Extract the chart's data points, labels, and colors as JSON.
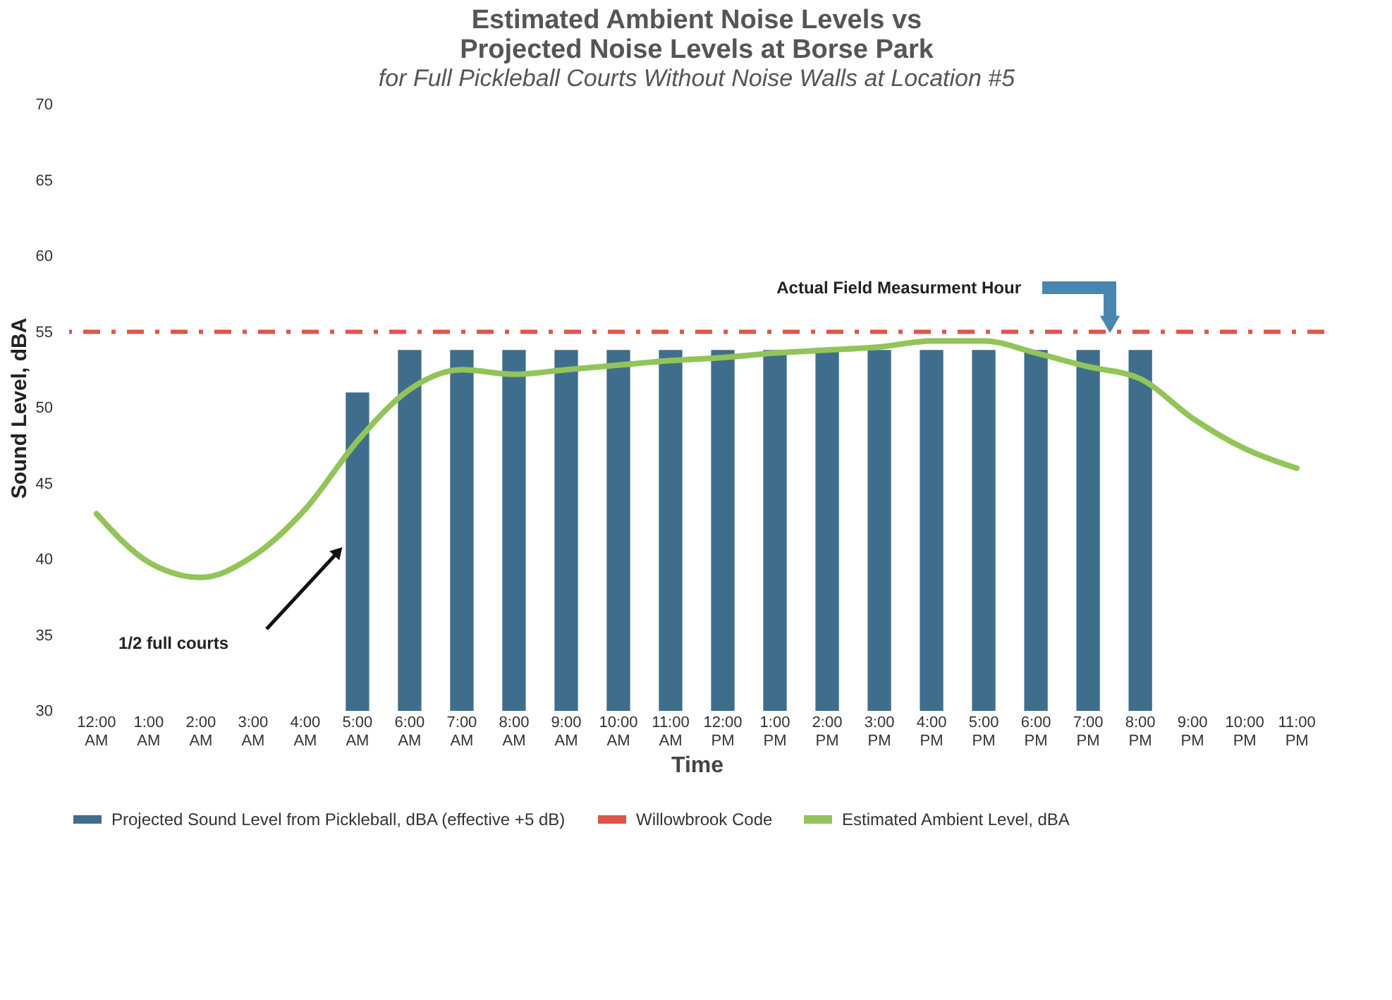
{
  "chart_data": {
    "type": "bar",
    "title": [
      "Estimated Ambient Noise Levels vs",
      "Projected Noise Levels at Borse Park"
    ],
    "subtitle": "for Full Pickleball Courts Without Noise Walls at Location #5",
    "xlabel": "Time",
    "ylabel": "Sound Level, dBA",
    "categories": [
      "12:00 AM",
      "1:00 AM",
      "2:00 AM",
      "3:00 AM",
      "4:00 AM",
      "5:00 AM",
      "6:00 AM",
      "7:00 AM",
      "8:00 AM",
      "9:00 AM",
      "10:00 AM",
      "11:00 AM",
      "12:00 PM",
      "1:00 PM",
      "2:00 PM",
      "3:00 PM",
      "4:00 PM",
      "5:00 PM",
      "6:00 PM",
      "7:00 PM",
      "8:00 PM",
      "9:00 PM",
      "10:00 PM",
      "11:00 PM"
    ],
    "series": [
      {
        "name": "Projected Sound Level from Pickleball, dBA (effective +5 dB)",
        "color": "#3f6e8c",
        "values": [
          null,
          null,
          null,
          null,
          null,
          51,
          53.8,
          53.8,
          53.8,
          53.8,
          53.8,
          53.8,
          53.8,
          53.8,
          53.8,
          53.8,
          53.8,
          53.8,
          53.8,
          53.8,
          53.8,
          null,
          null,
          null
        ]
      },
      {
        "name": "Estimated Ambient Level, dBA",
        "type": "line",
        "color": "#92c45a",
        "values": [
          43,
          39.8,
          38.8,
          40.2,
          43.3,
          47.8,
          51.2,
          52.5,
          52.2,
          52.5,
          52.8,
          53.1,
          53.3,
          53.6,
          53.8,
          54.0,
          54.4,
          54.4,
          53.6,
          52.7,
          51.9,
          49.3,
          47.3,
          46.0
        ]
      }
    ],
    "ref_lines": [
      {
        "axis": "y",
        "value": 55,
        "label": "Willowbrook Code",
        "color": "#e0554a",
        "line_style": "dashdot"
      }
    ],
    "annotations": [
      "1/2 full courts",
      "Actual Field Measurment Hour"
    ],
    "ylim": [
      30,
      70
    ],
    "yticks": [
      30,
      35,
      40,
      45,
      50,
      55,
      60,
      65,
      70
    ],
    "grid": false,
    "legend": "bottom"
  }
}
